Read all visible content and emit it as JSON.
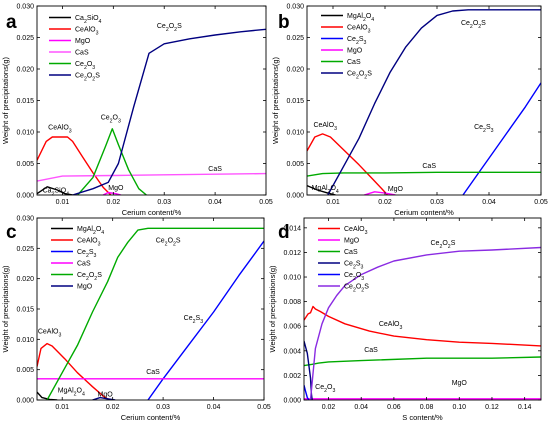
{
  "chart_data": [
    {
      "id": "a",
      "type": "line",
      "panel_label": "a",
      "xlabel": "Cerium content/%",
      "ylabel": "Weight of precipitations(g)",
      "xlim": [
        0.005,
        0.05
      ],
      "ylim": [
        0,
        0.03
      ],
      "xticks": [
        0.01,
        0.02,
        0.03,
        0.04,
        0.05
      ],
      "xtick_labels": [
        "0.01",
        "0.02",
        "0.03",
        "0.04",
        "0.05"
      ],
      "yticks": [
        0,
        0.005,
        0.01,
        0.015,
        0.02,
        0.025,
        0.03
      ],
      "ytick_labels": [
        "0.000",
        "0.005",
        "0.010",
        "0.015",
        "0.020",
        "0.025",
        "0.030"
      ],
      "legend": [
        "Ca2SiO4",
        "CeAlO3",
        "MgO",
        "CaS",
        "Ce2O3",
        "Ce2O2S"
      ],
      "series": [
        {
          "name": "Ca2SiO4",
          "color": "#000000",
          "x": [
            0.005,
            0.007,
            0.009,
            0.0105,
            0.012
          ],
          "y": [
            0.0002,
            0.0013,
            0.0008,
            0.0002,
            0.0
          ]
        },
        {
          "name": "CeAlO3",
          "color": "#ff0000",
          "x": [
            0.005,
            0.0068,
            0.008,
            0.011,
            0.012,
            0.014,
            0.016,
            0.018,
            0.0195
          ],
          "y": [
            0.0055,
            0.0085,
            0.0092,
            0.0092,
            0.0085,
            0.006,
            0.0035,
            0.0012,
            0.0
          ]
        },
        {
          "name": "MgO",
          "color": "#ff00ff",
          "x": [
            0.018,
            0.019,
            0.0205,
            0.0215
          ],
          "y": [
            0.0,
            0.0004,
            0.0002,
            0.0
          ]
        },
        {
          "name": "CaS",
          "color": "#ff55ff",
          "x": [
            0.005,
            0.01,
            0.02,
            0.03,
            0.04,
            0.05
          ],
          "y": [
            0.0022,
            0.003,
            0.0031,
            0.0032,
            0.0033,
            0.0034
          ]
        },
        {
          "name": "Ce2O3",
          "color": "#00aa00",
          "x": [
            0.013,
            0.016,
            0.0185,
            0.0198,
            0.021,
            0.023,
            0.025,
            0.0265
          ],
          "y": [
            0.0,
            0.0028,
            0.0078,
            0.0105,
            0.008,
            0.004,
            0.001,
            0.0
          ]
        },
        {
          "name": "Ce2O2S",
          "color": "#000080",
          "x": [
            0.012,
            0.016,
            0.019,
            0.021,
            0.024,
            0.027,
            0.03,
            0.035,
            0.04,
            0.045,
            0.05
          ],
          "y": [
            0.0,
            0.001,
            0.002,
            0.005,
            0.014,
            0.0225,
            0.024,
            0.0248,
            0.0254,
            0.0259,
            0.0263
          ]
        }
      ],
      "annotations": [
        {
          "text": "Ce2O2S",
          "x": 0.031,
          "y": 0.0265
        },
        {
          "text": "CeAlO3",
          "x": 0.0095,
          "y": 0.0104
        },
        {
          "text": "Ce2O3",
          "x": 0.0195,
          "y": 0.012
        },
        {
          "text": "CaS",
          "x": 0.04,
          "y": 0.0038
        },
        {
          "text": "MgO",
          "x": 0.0205,
          "y": 0.0008
        },
        {
          "text": "Ca2SiO4",
          "x": 0.0087,
          "y": 0.0004
        }
      ]
    },
    {
      "id": "b",
      "type": "line",
      "panel_label": "b",
      "xlabel": "Cerium content/%",
      "ylabel": "Weight of precipitations(g)",
      "xlim": [
        0.005,
        0.05
      ],
      "ylim": [
        0,
        0.03
      ],
      "xticks": [
        0.01,
        0.02,
        0.03,
        0.04,
        0.05
      ],
      "xtick_labels": [
        "0.01",
        "0.02",
        "0.03",
        "0.04",
        "0.05"
      ],
      "yticks": [
        0,
        0.005,
        0.01,
        0.015,
        0.02,
        0.025,
        0.03
      ],
      "ytick_labels": [
        "0.000",
        "0.005",
        "0.010",
        "0.015",
        "0.020",
        "0.025",
        "0.030"
      ],
      "legend": [
        "MgAl2O4",
        "CeAlO3",
        "Ce2S3",
        "MgO",
        "CaS",
        "Ce2O2S"
      ],
      "series": [
        {
          "name": "MgAl2O4",
          "color": "#000000",
          "x": [
            0.005,
            0.007,
            0.009,
            0.0105
          ],
          "y": [
            0.0015,
            0.0008,
            0.0003,
            0.0
          ]
        },
        {
          "name": "CeAlO3",
          "color": "#ff0000",
          "x": [
            0.005,
            0.0065,
            0.008,
            0.0095,
            0.012,
            0.015,
            0.018,
            0.0205
          ],
          "y": [
            0.007,
            0.0092,
            0.0097,
            0.0092,
            0.0072,
            0.0048,
            0.0022,
            0.0
          ]
        },
        {
          "name": "Ce2S3",
          "color": "#0000ff",
          "x": [
            0.035,
            0.038,
            0.041,
            0.044,
            0.047,
            0.05
          ],
          "y": [
            0.0,
            0.0035,
            0.007,
            0.0105,
            0.014,
            0.0178
          ]
        },
        {
          "name": "MgO",
          "color": "#ff00ff",
          "x": [
            0.016,
            0.018,
            0.02,
            0.022
          ],
          "y": [
            0.0,
            0.0005,
            0.0003,
            0.0
          ]
        },
        {
          "name": "CaS",
          "color": "#00aa00",
          "x": [
            0.005,
            0.008,
            0.012,
            0.02,
            0.03,
            0.04,
            0.05
          ],
          "y": [
            0.003,
            0.0034,
            0.0035,
            0.0035,
            0.0036,
            0.0036,
            0.0036
          ]
        },
        {
          "name": "Ce2O2S",
          "color": "#000080",
          "x": [
            0.009,
            0.012,
            0.015,
            0.018,
            0.021,
            0.024,
            0.027,
            0.03,
            0.033,
            0.036,
            0.04,
            0.05
          ],
          "y": [
            0.0,
            0.0045,
            0.009,
            0.0145,
            0.0195,
            0.0235,
            0.0265,
            0.0285,
            0.0292,
            0.0294,
            0.0294,
            0.0294
          ]
        }
      ],
      "annotations": [
        {
          "text": "Ce2O2S",
          "x": 0.037,
          "y": 0.027
        },
        {
          "text": "CeAlO3",
          "x": 0.0085,
          "y": 0.0108
        },
        {
          "text": "Ce2S3",
          "x": 0.039,
          "y": 0.0105
        },
        {
          "text": "CaS",
          "x": 0.0285,
          "y": 0.0043
        },
        {
          "text": "MgAl2O4",
          "x": 0.0085,
          "y": 0.0008
        },
        {
          "text": "MgO",
          "x": 0.022,
          "y": 0.0006
        }
      ]
    },
    {
      "id": "c",
      "type": "line",
      "panel_label": "c",
      "xlabel": "Cerium content/%",
      "ylabel": "Weight of precipitations(g)",
      "xlim": [
        0.005,
        0.05
      ],
      "ylim": [
        0,
        0.03
      ],
      "xticks": [
        0.01,
        0.02,
        0.03,
        0.04,
        0.05
      ],
      "xtick_labels": [
        "0.01",
        "0.02",
        "0.03",
        "0.04",
        "0.05"
      ],
      "yticks": [
        0,
        0.005,
        0.01,
        0.015,
        0.02,
        0.025,
        0.03
      ],
      "ytick_labels": [
        "0.000",
        "0.005",
        "0.010",
        "0.015",
        "0.020",
        "0.025",
        "0.030"
      ],
      "legend": [
        "MgAl2O4",
        "CeAlO3",
        "Ce2S3",
        "CaS",
        "Ce2O2S",
        "MgO"
      ],
      "series": [
        {
          "name": "MgAl2O4",
          "color": "#000000",
          "x": [
            0.005,
            0.006,
            0.0075,
            0.009
          ],
          "y": [
            0.0013,
            0.0004,
            0.0001,
            0.0
          ]
        },
        {
          "name": "CeAlO3",
          "color": "#ff0000",
          "x": [
            0.005,
            0.0058,
            0.007,
            0.008,
            0.0105,
            0.013,
            0.016,
            0.0185,
            0.0195
          ],
          "y": [
            0.0055,
            0.0085,
            0.0093,
            0.0089,
            0.0068,
            0.0045,
            0.0022,
            0.0004,
            0.0
          ]
        },
        {
          "name": "Ce2S3",
          "color": "#0000ff",
          "x": [
            0.027,
            0.03,
            0.035,
            0.04,
            0.045,
            0.05
          ],
          "y": [
            0.0,
            0.0035,
            0.009,
            0.0145,
            0.0205,
            0.0262
          ]
        },
        {
          "name": "CaS",
          "color": "#ff00ff",
          "x": [
            0.005,
            0.01,
            0.02,
            0.03,
            0.04,
            0.05
          ],
          "y": [
            0.0035,
            0.0035,
            0.0035,
            0.0035,
            0.0035,
            0.0035
          ]
        },
        {
          "name": "Ce2O2S",
          "color": "#00aa00",
          "x": [
            0.007,
            0.01,
            0.013,
            0.016,
            0.019,
            0.021,
            0.023,
            0.025,
            0.027,
            0.03,
            0.04,
            0.05
          ],
          "y": [
            0.0,
            0.0045,
            0.009,
            0.0145,
            0.0195,
            0.0235,
            0.026,
            0.028,
            0.0283,
            0.0283,
            0.0283,
            0.0283
          ]
        },
        {
          "name": "MgO",
          "color": "#000080",
          "x": [
            0.016,
            0.0175,
            0.019,
            0.0205
          ],
          "y": [
            0.0,
            0.0004,
            0.0002,
            0.0
          ]
        }
      ],
      "annotations": [
        {
          "text": "Ce2O2S",
          "x": 0.031,
          "y": 0.026
        },
        {
          "text": "CeAlO3",
          "x": 0.0075,
          "y": 0.011
        },
        {
          "text": "Ce2S3",
          "x": 0.036,
          "y": 0.0132
        },
        {
          "text": "CaS",
          "x": 0.028,
          "y": 0.0043
        },
        {
          "text": "MgAl2O4",
          "x": 0.0118,
          "y": 0.0012
        },
        {
          "text": "MgO",
          "x": 0.0185,
          "y": 0.0006
        }
      ]
    },
    {
      "id": "d",
      "type": "line",
      "panel_label": "d",
      "xlabel": "S content/%",
      "ylabel": "Weight of precipitations(g)",
      "xlim": [
        0.005,
        0.15
      ],
      "ylim": [
        0,
        0.0148
      ],
      "xticks": [
        0.02,
        0.04,
        0.06,
        0.08,
        0.1,
        0.12,
        0.14
      ],
      "xtick_labels": [
        "0.02",
        "0.04",
        "0.06",
        "0.08",
        "0.10",
        "0.12",
        "0.14"
      ],
      "yticks": [
        0,
        0.002,
        0.004,
        0.006,
        0.008,
        0.01,
        0.012,
        0.014
      ],
      "ytick_labels": [
        "0.000",
        "0.002",
        "0.004",
        "0.006",
        "0.008",
        "0.010",
        "0.012",
        "0.014"
      ],
      "legend": [
        "CeAlO3",
        "MgO",
        "CaS",
        "Ce2S3",
        "Ce2O3",
        "Ce2O2S"
      ],
      "series": [
        {
          "name": "CeAlO3",
          "color": "#ff0000",
          "x": [
            0.005,
            0.0075,
            0.009,
            0.0105,
            0.012,
            0.015,
            0.02,
            0.03,
            0.045,
            0.06,
            0.08,
            0.1,
            0.12,
            0.15
          ],
          "y": [
            0.0065,
            0.007,
            0.0071,
            0.0076,
            0.0074,
            0.0072,
            0.0068,
            0.0062,
            0.0056,
            0.0052,
            0.0049,
            0.0047,
            0.0046,
            0.0044
          ]
        },
        {
          "name": "MgO",
          "color": "#ff00ff",
          "x": [
            0.005,
            0.05,
            0.1,
            0.15
          ],
          "y": [
            0.0001,
            0.0001,
            0.0001,
            0.0001
          ]
        },
        {
          "name": "CaS",
          "color": "#00aa00",
          "x": [
            0.005,
            0.01,
            0.014,
            0.02,
            0.04,
            0.08,
            0.12,
            0.15
          ],
          "y": [
            0.0028,
            0.0029,
            0.003,
            0.0031,
            0.0032,
            0.0034,
            0.0034,
            0.0035
          ]
        },
        {
          "name": "Ce2S3",
          "color": "#000080",
          "x": [
            0.005,
            0.007,
            0.009,
            0.0095,
            0.01
          ],
          "y": [
            0.0048,
            0.0038,
            0.0018,
            0.0005,
            0.0
          ]
        },
        {
          "name": "Ce2O3",
          "color": "#0000ff",
          "x": [
            0.005,
            0.006,
            0.007,
            0.008
          ],
          "y": [
            0.0012,
            0.0007,
            0.0002,
            0.0
          ]
        },
        {
          "name": "Ce2O2S",
          "color": "#8a2be2",
          "x": [
            0.009,
            0.012,
            0.016,
            0.02,
            0.025,
            0.03,
            0.04,
            0.05,
            0.06,
            0.08,
            0.1,
            0.12,
            0.15
          ],
          "y": [
            0.0,
            0.0042,
            0.0062,
            0.0075,
            0.0085,
            0.0093,
            0.0102,
            0.0108,
            0.0113,
            0.0118,
            0.0121,
            0.0122,
            0.0124
          ]
        }
      ],
      "annotations": [
        {
          "text": "Ce2O2S",
          "x": 0.09,
          "y": 0.0126
        },
        {
          "text": "CeAlO3",
          "x": 0.058,
          "y": 0.006
        },
        {
          "text": "CaS",
          "x": 0.046,
          "y": 0.0039
        },
        {
          "text": "Ce2O3",
          "x": 0.018,
          "y": 0.0009
        },
        {
          "text": "MgO",
          "x": 0.1,
          "y": 0.0012
        }
      ]
    }
  ]
}
